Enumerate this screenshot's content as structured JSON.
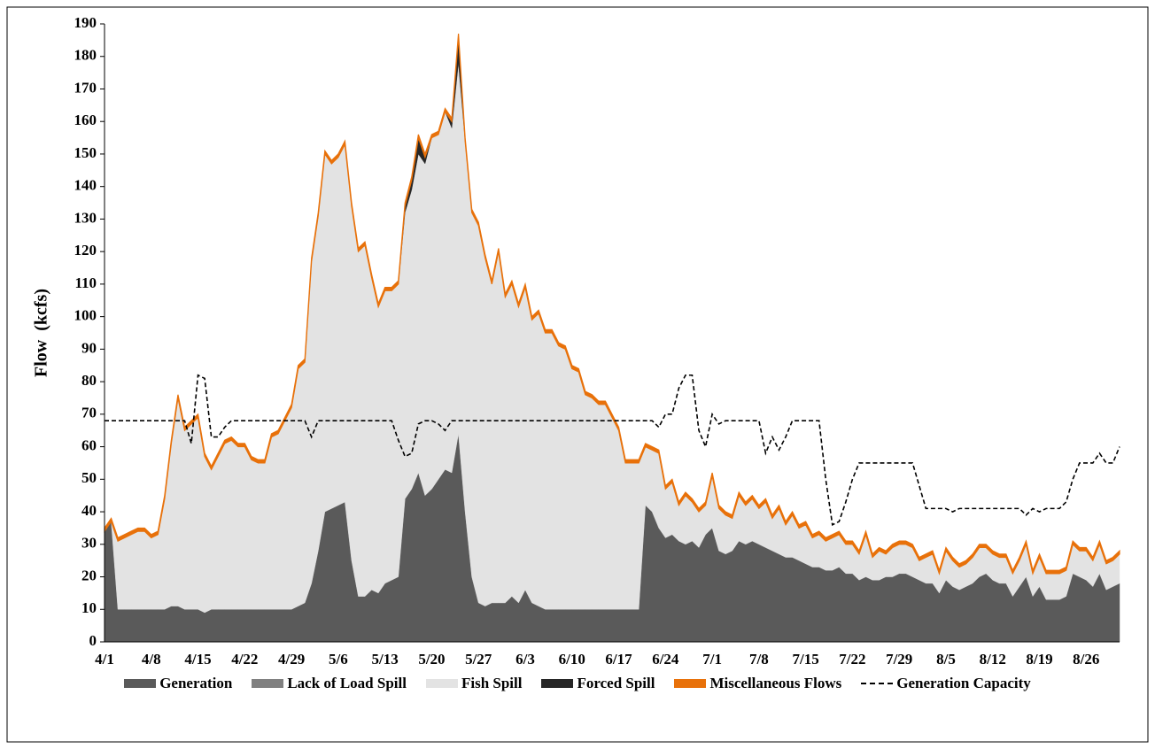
{
  "chart_data": {
    "type": "stacked-area",
    "y_label": "Flow  (kcfs)",
    "categories": [
      "4/1",
      null,
      null,
      null,
      null,
      null,
      null,
      "4/8",
      null,
      null,
      null,
      null,
      null,
      null,
      "4/15",
      null,
      null,
      null,
      null,
      null,
      null,
      "4/22",
      null,
      null,
      null,
      null,
      null,
      null,
      "4/29",
      null,
      null,
      null,
      null,
      null,
      null,
      "5/6",
      null,
      null,
      null,
      null,
      null,
      null,
      "5/13",
      null,
      null,
      null,
      null,
      null,
      null,
      "5/20",
      null,
      null,
      null,
      null,
      null,
      null,
      "5/27",
      null,
      null,
      null,
      null,
      null,
      null,
      "6/3",
      null,
      null,
      null,
      null,
      null,
      null,
      "6/10",
      null,
      null,
      null,
      null,
      null,
      null,
      "6/17",
      null,
      null,
      null,
      null,
      null,
      null,
      "6/24",
      null,
      null,
      null,
      null,
      null,
      null,
      "7/1",
      null,
      null,
      null,
      null,
      null,
      null,
      "7/8",
      null,
      null,
      null,
      null,
      null,
      null,
      "7/15",
      null,
      null,
      null,
      null,
      null,
      null,
      "7/22",
      null,
      null,
      null,
      null,
      null,
      null,
      "7/29",
      null,
      null,
      null,
      null,
      null,
      null,
      "8/5",
      null,
      null,
      null,
      null,
      null,
      null,
      "8/12",
      null,
      null,
      null,
      null,
      null,
      null,
      "8/19",
      null,
      null,
      null,
      null,
      null,
      null,
      "8/26",
      null,
      null,
      null,
      null,
      null
    ],
    "series": [
      {
        "name": "Generation",
        "color": "#5a5a5a",
        "values": [
          34,
          37,
          10,
          10,
          10,
          10,
          10,
          10,
          10,
          10,
          11,
          11,
          10,
          10,
          10,
          9,
          10,
          10,
          10,
          10,
          10,
          10,
          10,
          10,
          10,
          10,
          10,
          10,
          10,
          11,
          12,
          18,
          28,
          40,
          41,
          42,
          43,
          25,
          14,
          14,
          16,
          15,
          18,
          19,
          20,
          44,
          47,
          52,
          45,
          47,
          50,
          53,
          52,
          64,
          40,
          20,
          12,
          11,
          12,
          12,
          12,
          14,
          12,
          16,
          12,
          11,
          10,
          10,
          10,
          10,
          10,
          10,
          10,
          10,
          10,
          10,
          10,
          10,
          10,
          10,
          10,
          42,
          40,
          35,
          32,
          33,
          31,
          30,
          31,
          29,
          33,
          35,
          28,
          27,
          28,
          31,
          30,
          31,
          30,
          29,
          28,
          27,
          26,
          26,
          25,
          24,
          23,
          23,
          22,
          22,
          23,
          21,
          21,
          19,
          20,
          19,
          19,
          20,
          20,
          21,
          21,
          20,
          19,
          18,
          18,
          15,
          19,
          17,
          16,
          17,
          18,
          20,
          21,
          19,
          18,
          18,
          14,
          17,
          20,
          14,
          17,
          13,
          13,
          13,
          14,
          21,
          20,
          19,
          17,
          21,
          16,
          17,
          18
        ]
      },
      {
        "name": "Lack of Load Spill",
        "color": "#808080",
        "values": [
          0,
          0,
          0,
          0,
          0,
          0,
          0,
          0,
          0,
          0,
          0,
          0,
          0,
          0,
          0,
          0,
          0,
          0,
          0,
          0,
          0,
          0,
          0,
          0,
          0,
          0,
          0,
          0,
          0,
          0,
          0,
          0,
          0,
          0,
          0,
          0,
          0,
          0,
          0,
          0,
          0,
          0,
          0,
          0,
          0,
          0,
          0,
          0,
          0,
          0,
          0,
          0,
          0,
          0,
          0,
          0,
          0,
          0,
          0,
          0,
          0,
          0,
          0,
          0,
          0,
          0,
          0,
          0,
          0,
          0,
          0,
          0,
          0,
          0,
          0,
          0,
          0,
          0,
          0,
          0,
          0,
          0,
          0,
          0,
          0,
          0,
          0,
          0,
          0,
          0,
          0,
          0,
          0,
          0,
          0,
          0,
          0,
          0,
          0,
          0,
          0,
          0,
          0,
          0,
          0,
          0,
          0,
          0,
          0,
          0,
          0,
          0,
          0,
          0,
          0,
          0,
          0,
          0,
          0,
          0,
          0,
          0,
          0,
          0,
          0,
          0,
          0,
          0,
          0,
          0,
          0,
          0,
          0,
          0,
          0,
          0,
          0,
          0,
          0,
          0,
          0,
          0,
          0,
          0,
          0,
          0,
          0,
          0,
          0,
          0,
          0,
          0,
          0
        ]
      },
      {
        "name": "Fish Spill",
        "color": "#e3e3e3",
        "values": [
          0,
          0,
          21,
          22,
          23,
          24,
          24,
          22,
          23,
          34,
          50,
          64,
          55,
          57,
          59,
          48,
          43,
          47,
          51,
          52,
          50,
          50,
          46,
          45,
          45,
          53,
          54,
          58,
          62,
          73,
          74,
          99,
          103,
          110,
          106,
          107,
          110,
          109,
          106,
          108,
          96,
          88,
          90,
          89,
          90,
          88,
          92,
          98,
          102,
          108,
          106,
          110,
          106,
          114,
          114,
          112,
          116,
          107,
          98,
          108,
          94,
          96,
          91,
          93,
          87,
          90,
          85,
          85,
          81,
          80,
          74,
          73,
          66,
          65,
          63,
          63,
          59,
          55,
          45,
          45,
          45,
          18,
          19,
          23,
          15,
          16,
          11,
          15,
          12,
          11,
          9,
          16,
          13,
          12,
          10,
          14,
          12,
          13,
          11,
          14,
          10,
          14,
          10,
          13,
          10,
          12,
          9,
          10,
          9,
          10,
          10,
          9,
          9,
          8,
          13,
          7,
          9,
          7,
          9,
          9,
          9,
          9,
          6,
          8,
          9,
          6,
          9,
          8,
          7,
          7,
          8,
          9,
          8,
          8,
          8,
          8,
          7,
          8,
          10,
          7,
          9,
          8,
          8,
          8,
          8,
          9,
          8,
          9,
          8,
          9,
          8,
          8,
          9
        ]
      },
      {
        "name": "Forced Spill",
        "color": "#262626",
        "values": [
          0,
          0,
          0,
          0,
          0,
          0,
          0,
          0,
          0,
          0,
          0,
          0,
          0,
          0,
          0,
          0,
          0,
          0,
          0,
          0,
          0,
          0,
          0,
          0,
          0,
          0,
          0,
          0,
          0,
          0,
          0,
          0,
          0,
          0,
          0,
          0,
          0,
          0,
          0,
          0,
          0,
          0,
          0,
          0,
          0,
          2,
          3,
          5,
          2,
          0,
          0,
          0,
          2,
          8,
          0,
          0,
          0,
          0,
          0,
          0,
          0,
          0,
          0,
          0,
          0,
          0,
          0,
          0,
          0,
          0,
          0,
          0,
          0,
          0,
          0,
          0,
          0,
          0,
          0,
          0,
          0,
          0,
          0,
          0,
          0,
          0,
          0,
          0,
          0,
          0,
          0,
          0,
          0,
          0,
          0,
          0,
          0,
          0,
          0,
          0,
          0,
          0,
          0,
          0,
          0,
          0,
          0,
          0,
          0,
          0,
          0,
          0,
          0,
          0,
          0,
          0,
          0,
          0,
          0,
          0,
          0,
          0,
          0,
          0,
          0,
          0,
          0,
          0,
          0,
          0,
          0,
          0,
          0,
          0,
          0,
          0,
          0,
          0,
          0,
          0,
          0,
          0,
          0,
          0,
          0,
          0,
          0,
          0,
          0,
          0,
          0,
          0,
          0
        ]
      },
      {
        "name": "Miscellaneous Flows",
        "color": "#e8710a",
        "values": [
          1,
          1,
          1,
          1,
          1,
          1,
          1,
          1,
          1,
          1,
          1,
          1,
          1,
          1,
          1,
          1,
          1,
          1,
          1,
          1,
          1,
          1,
          1,
          1,
          1,
          1,
          1,
          1,
          1,
          1,
          1,
          1,
          1,
          1,
          1,
          1,
          1,
          1,
          1,
          1,
          1,
          1,
          1,
          1,
          1,
          1,
          1,
          1,
          1,
          1,
          1,
          1,
          1,
          1,
          1,
          1,
          1,
          1,
          1,
          1,
          1,
          1,
          1,
          1,
          1,
          1,
          1,
          1,
          1,
          1,
          1,
          1,
          1,
          1,
          1,
          1,
          1,
          1,
          1,
          1,
          1,
          1,
          1,
          1,
          1,
          1,
          1,
          1,
          1,
          1,
          1,
          1,
          1,
          1,
          1,
          1,
          1,
          1,
          1,
          1,
          1,
          1,
          1,
          1,
          1,
          1,
          1,
          1,
          1,
          1,
          1,
          1,
          1,
          1,
          1,
          1,
          1,
          1,
          1,
          1,
          1,
          1,
          1,
          1,
          1,
          1,
          1,
          1,
          1,
          1,
          1,
          1,
          1,
          1,
          1,
          1,
          1,
          1,
          1,
          1,
          1,
          1,
          1,
          1,
          1,
          1,
          1,
          1,
          1,
          1,
          1,
          1,
          1
        ]
      },
      {
        "name": "Generation Capacity",
        "color": "#000000",
        "type": "line",
        "dashed": true,
        "values": [
          68,
          68,
          68,
          68,
          68,
          68,
          68,
          68,
          68,
          68,
          68,
          68,
          68,
          61,
          82,
          81,
          63,
          63,
          66,
          68,
          68,
          68,
          68,
          68,
          68,
          68,
          68,
          68,
          68,
          68,
          68,
          63,
          68,
          68,
          68,
          68,
          68,
          68,
          68,
          68,
          68,
          68,
          68,
          68,
          62,
          57,
          58,
          67,
          68,
          68,
          67,
          65,
          68,
          68,
          68,
          68,
          68,
          68,
          68,
          68,
          68,
          68,
          68,
          68,
          68,
          68,
          68,
          68,
          68,
          68,
          68,
          68,
          68,
          68,
          68,
          68,
          68,
          68,
          68,
          68,
          68,
          68,
          68,
          66,
          70,
          70,
          78,
          82,
          82,
          65,
          60,
          70,
          67,
          68,
          68,
          68,
          68,
          68,
          68,
          58,
          63,
          59,
          63,
          68,
          68,
          68,
          68,
          68,
          50,
          36,
          37,
          43,
          50,
          55,
          55,
          55,
          55,
          55,
          55,
          55,
          55,
          55,
          48,
          41,
          41,
          41,
          41,
          40,
          41,
          41,
          41,
          41,
          41,
          41,
          41,
          41,
          41,
          41,
          39,
          41,
          40,
          41,
          41,
          41,
          43,
          50,
          55,
          55,
          55,
          58,
          55,
          55,
          60
        ]
      }
    ],
    "ylim": [
      0,
      190
    ],
    "yticks": [
      0,
      10,
      20,
      30,
      40,
      50,
      60,
      70,
      80,
      90,
      100,
      110,
      120,
      130,
      140,
      150,
      160,
      170,
      180,
      190
    ],
    "grid": false
  }
}
